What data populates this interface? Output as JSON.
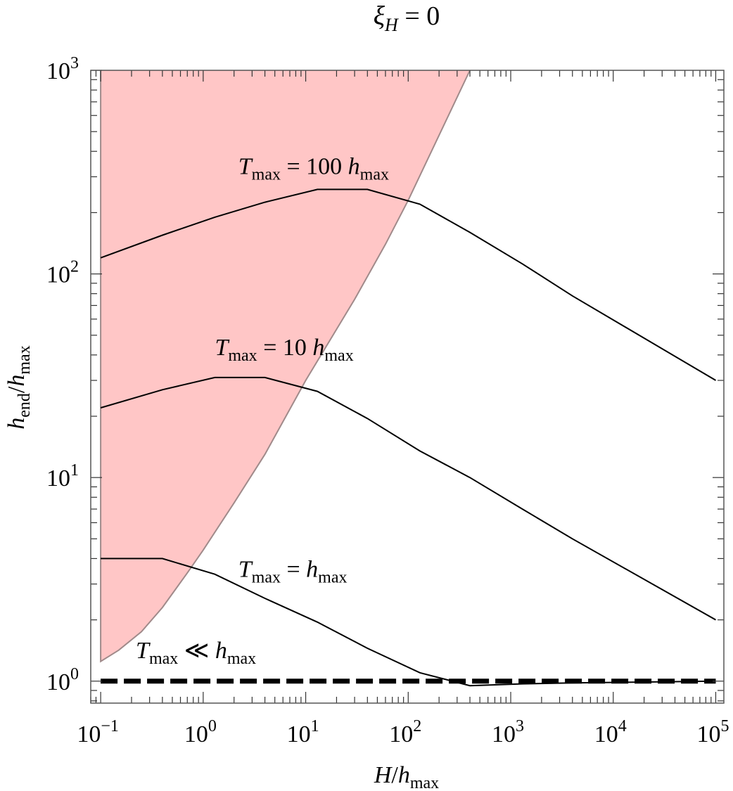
{
  "chart_data": {
    "type": "line",
    "title": {
      "prefix": "ξ",
      "sub": "H",
      "suffix": " = 0"
    },
    "xlabel": {
      "a": "H",
      "slash": "/",
      "b": "h",
      "b_sub": "max"
    },
    "ylabel": {
      "a": "h",
      "a_sub": "end",
      "slash": "/",
      "b": "h",
      "b_sub": "max"
    },
    "x_scale": "log",
    "y_scale": "log",
    "xlim": [
      0.08,
      120000
    ],
    "ylim": [
      0.78,
      1000
    ],
    "x_ticks": [
      {
        "value": 0.1,
        "base": "10",
        "exp": "−1"
      },
      {
        "value": 1,
        "base": "10",
        "exp": "0"
      },
      {
        "value": 10,
        "base": "10",
        "exp": "1"
      },
      {
        "value": 100,
        "base": "10",
        "exp": "2"
      },
      {
        "value": 1000,
        "base": "10",
        "exp": "3"
      },
      {
        "value": 10000,
        "base": "10",
        "exp": "4"
      },
      {
        "value": 100000,
        "base": "10",
        "exp": "5"
      }
    ],
    "y_ticks": [
      {
        "value": 1,
        "base": "10",
        "exp": "0"
      },
      {
        "value": 10,
        "base": "10",
        "exp": "1"
      },
      {
        "value": 100,
        "base": "10",
        "exp": "2"
      },
      {
        "value": 1000,
        "base": "10",
        "exp": "3"
      }
    ],
    "shaded_region": {
      "color": "#ffc6c6",
      "edge_color": "#a08a8a",
      "boundary": [
        [
          0.1,
          1000
        ],
        [
          0.1,
          1.25
        ],
        [
          0.15,
          1.42
        ],
        [
          0.25,
          1.75
        ],
        [
          0.4,
          2.3
        ],
        [
          0.7,
          3.4
        ],
        [
          1,
          4.4
        ],
        [
          2,
          7.5
        ],
        [
          4,
          13
        ],
        [
          10,
          30
        ],
        [
          30,
          75
        ],
        [
          60,
          140
        ],
        [
          100,
          230
        ],
        [
          200,
          480
        ],
        [
          400,
          1000
        ]
      ]
    },
    "series": [
      {
        "color": "#000000",
        "style": "solid",
        "x": [
          0.1,
          0.4,
          1.3,
          4,
          13,
          40,
          130,
          400,
          1300,
          4000,
          100000
        ],
        "y": [
          4,
          4,
          3.35,
          2.55,
          1.95,
          1.45,
          1.1,
          0.95,
          0.97,
          0.98,
          1.0
        ]
      },
      {
        "color": "#000000",
        "style": "solid",
        "x": [
          0.1,
          0.4,
          1.3,
          4,
          13,
          40,
          130,
          400,
          1300,
          4000,
          100000
        ],
        "y": [
          22,
          27,
          31,
          31,
          26.5,
          19.5,
          13.5,
          10,
          7,
          5,
          2
        ]
      },
      {
        "color": "#000000",
        "style": "solid",
        "x": [
          0.1,
          0.4,
          1.3,
          4,
          13,
          40,
          130,
          400,
          1300,
          4000,
          100000
        ],
        "y": [
          120,
          155,
          190,
          225,
          260,
          260,
          220,
          160,
          112,
          78,
          30
        ]
      },
      {
        "color": "#000000",
        "style": "dashed",
        "x": [
          0.1,
          100000
        ],
        "y": [
          1,
          1
        ]
      }
    ],
    "annotations": [
      {
        "id": "t100",
        "x": 2.2,
        "y": 310,
        "a": "T",
        "a_sub": "max",
        "mid": " = 100 ",
        "b": "h",
        "b_sub": "max"
      },
      {
        "id": "t10",
        "x": 1.3,
        "y": 40,
        "a": "T",
        "a_sub": "max",
        "mid": " = 10 ",
        "b": "h",
        "b_sub": "max"
      },
      {
        "id": "t1",
        "x": 2.2,
        "y": 3.25,
        "a": "T",
        "a_sub": "max",
        "mid": " = ",
        "b": "h",
        "b_sub": "max"
      },
      {
        "id": "tll",
        "x": 0.22,
        "y": 1.3,
        "a": "T",
        "a_sub": "max",
        "mid": " ≪ ",
        "b": "h",
        "b_sub": "max"
      }
    ],
    "grid": false,
    "legend": "none"
  }
}
